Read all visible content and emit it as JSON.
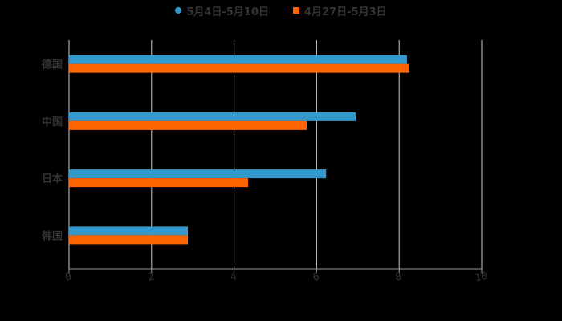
{
  "legend": {
    "items": [
      {
        "label": "5月4日-5月10日",
        "color": "#3399cc",
        "shape": "circle"
      },
      {
        "label": "4月27日-5月3日",
        "color": "#ff6600",
        "shape": "square"
      }
    ]
  },
  "colors": {
    "background": "#000000",
    "gridline": "#cccccc",
    "axis": "#999999",
    "label": "#333333"
  },
  "chart_data": {
    "type": "bar",
    "orientation": "horizontal",
    "title": "",
    "xlabel": "",
    "ylabel": "",
    "categories": [
      "德国",
      "中国",
      "日本",
      "韩国"
    ],
    "series": [
      {
        "name": "5月4日-5月10日",
        "color": "#3399cc",
        "values": [
          8.19,
          6.95,
          6.23,
          2.88
        ]
      },
      {
        "name": "4月27日-5月3日",
        "color": "#ff6600",
        "values": [
          8.25,
          5.76,
          4.34,
          2.88
        ]
      }
    ],
    "xlim": [
      0,
      10
    ],
    "x_ticks": [
      "0",
      "2",
      "4",
      "6",
      "8",
      "10"
    ],
    "grid": true,
    "legend_position": "top"
  }
}
